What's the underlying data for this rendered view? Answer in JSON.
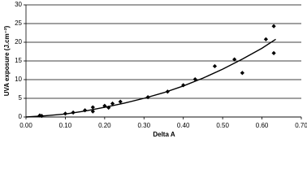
{
  "chart_data": {
    "type": "scatter",
    "xlabel": "Delta A",
    "ylabel": "UVA exposure (J.cm⁻²)",
    "xlim": [
      0,
      0.7
    ],
    "ylim": [
      0,
      30
    ],
    "xticks": [
      {
        "value": 0,
        "label": "0.00"
      },
      {
        "value": 0.1,
        "label": "0.10"
      },
      {
        "value": 0.2,
        "label": "0.20"
      },
      {
        "value": 0.3,
        "label": "0.30"
      },
      {
        "value": 0.4,
        "label": "0.40"
      },
      {
        "value": 0.5,
        "label": "0.50"
      },
      {
        "value": 0.6,
        "label": "0.60"
      },
      {
        "value": 0.7,
        "label": "0.70"
      }
    ],
    "yticks": [
      0,
      5,
      10,
      15,
      20,
      25,
      30
    ],
    "grid": true,
    "series": [
      {
        "style": "markers",
        "color": "#000000",
        "x": [
          0.035,
          0.04,
          0.1,
          0.12,
          0.15,
          0.17,
          0.17,
          0.2,
          0.21,
          0.22,
          0.24,
          0.31,
          0.36,
          0.4,
          0.43,
          0.48,
          0.53,
          0.55,
          0.61,
          0.63,
          0.63
        ],
        "values": [
          0.4,
          0.3,
          0.9,
          1.2,
          1.8,
          2.6,
          1.5,
          3.0,
          2.5,
          3.6,
          4.1,
          5.3,
          6.8,
          8.5,
          10.1,
          13.6,
          15.4,
          11.8,
          20.8,
          24.3,
          17.1
        ]
      },
      {
        "style": "line",
        "color": "#000000",
        "x": [
          0,
          0.05,
          0.1,
          0.15,
          0.2,
          0.25,
          0.3,
          0.35,
          0.4,
          0.45,
          0.5,
          0.55,
          0.6,
          0.635
        ],
        "values": [
          0,
          0.35,
          0.8,
          1.6,
          2.6,
          3.7,
          5.0,
          6.5,
          8.3,
          10.4,
          12.8,
          15.5,
          18.4,
          20.8
        ]
      }
    ]
  }
}
